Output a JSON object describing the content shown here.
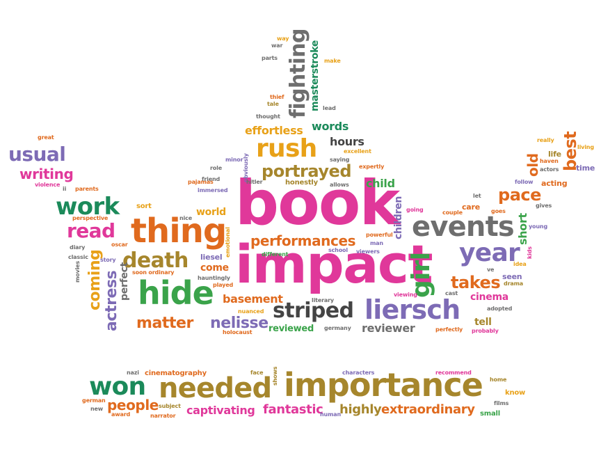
{
  "words": {
    "book": "book",
    "impact": "impact",
    "importance": "importance",
    "needed": "needed",
    "won": "won",
    "thing": "thing",
    "hide": "hide",
    "events": "events",
    "liersch": "liersch",
    "year": "year",
    "girl": "girl",
    "rush": "rush",
    "work": "work",
    "striped": "striped",
    "death": "death",
    "read": "read",
    "usual": "usual",
    "writing": "writing",
    "fighting": "fighting",
    "portrayed": "portrayed",
    "performances": "performances",
    "matter": "matter",
    "nelisse": "nelisse",
    "takes": "takes",
    "pace": "pace",
    "people": "people",
    "captivating": "captivating",
    "fantastic": "fantastic",
    "highly": "highly",
    "extraordinary": "extraordinary",
    "coming": "coming",
    "actress": "actress",
    "best": "best",
    "old": "old",
    "effortless": "effortless",
    "words": "words",
    "masterstroke": "masterstroke",
    "basement": "basement",
    "reviewer": "reviewer",
    "child": "child",
    "children": "children",
    "hours": "hours",
    "short": "short",
    "cinema": "cinema",
    "tell": "tell",
    "world": "world",
    "come": "come",
    "liesel": "liesel",
    "perfect": "perfect",
    "reviewed": "reviewed",
    "cinematography": "cinematography",
    "seen": "seen",
    "acting": "acting",
    "care": "care",
    "sort": "sort",
    "time": "time",
    "life": "life",
    "really": "really",
    "thief": "thief",
    "tale": "tale",
    "thought": "thought",
    "lead": "lead",
    "war": "war",
    "way": "way",
    "parts": "parts",
    "make": "make",
    "great": "great",
    "violence": "violence",
    "parents": "parents",
    "perspective": "perspective",
    "diary": "diary",
    "oscar": "oscar",
    "classic": "classic",
    "story": "story",
    "movies": "movies",
    "soon_ordinary": "soon ordinary",
    "hauntingly": "hauntingly",
    "played": "played",
    "pajamas": "pajamas",
    "nice": "nice",
    "role": "role",
    "friend": "friend",
    "immersed": "immersed",
    "minor": "minor",
    "obviously": "obviously",
    "hitler": "hitler",
    "honestly": "honestly",
    "allows": "allows",
    "excellent": "excellent",
    "saying": "saying",
    "expertly": "expertly",
    "emotional": "emotional",
    "different": "different",
    "nuanced": "nuanced",
    "holocaust": "holocaust",
    "school": "school",
    "man": "man",
    "powerful": "powerful",
    "viewers": "viewers",
    "going": "going",
    "literary": "literary",
    "germany": "germany",
    "viewing": "viewing",
    "let": "let",
    "couple": "couple",
    "goes": "goes",
    "gives": "gives",
    "young": "young",
    "follow": "follow",
    "kids": "kids",
    "idea": "idea",
    "ve": "ve",
    "drama": "drama",
    "cast": "cast",
    "adopted": "adopted",
    "perfectly": "perfectly",
    "probably": "probably",
    "haven": "haven",
    "actors": "actors",
    "living": "living",
    "ii": "ii",
    "nazi": "nazi",
    "face": "face",
    "shows": "shows",
    "characters": "characters",
    "recommend": "recommend",
    "home": "home",
    "know": "know",
    "films": "films",
    "small": "small",
    "german": "german",
    "new": "new",
    "award": "award",
    "subject": "subject",
    "narrator": "narrator",
    "human": "human"
  },
  "palette": {
    "pink": "#e0389a",
    "gold": "#e8a118",
    "purple": "#7d6bb5",
    "orange": "#e06a1e",
    "green": "#3aa34a",
    "grey": "#6e6e6e",
    "olive": "#a6862c",
    "teal": "#1b8a5a"
  }
}
